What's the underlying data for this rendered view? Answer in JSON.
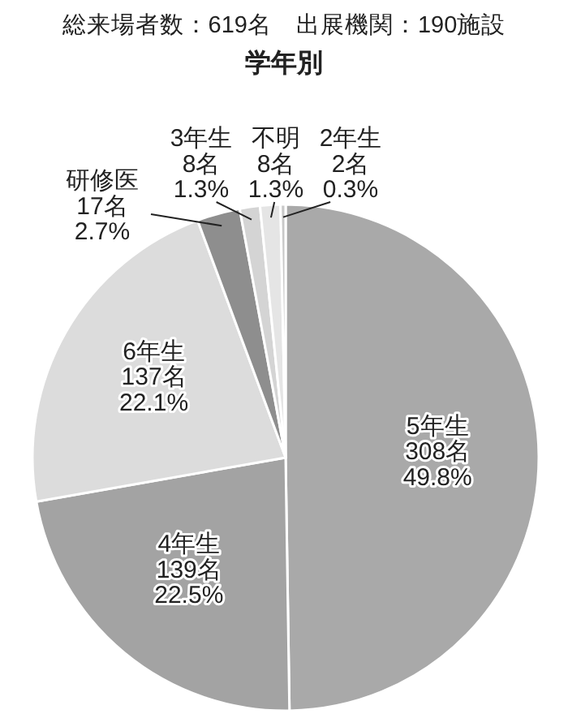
{
  "chart_data": {
    "type": "pie",
    "subtitle": "総来場者数：619名　出展機関：190施設",
    "title": "学年別",
    "categories": [
      "5年生",
      "4年生",
      "6年生",
      "研修医",
      "3年生",
      "不明",
      "2年生"
    ],
    "values": [
      308,
      139,
      137,
      17,
      8,
      8,
      2
    ],
    "value_labels": [
      "308名\n49.8%",
      "139名\n22.5%",
      "137名\n22.1%",
      "17名\n2.7%",
      "8名\n1.3%",
      "8名\n1.3%",
      "2名\n0.3%"
    ],
    "colors": [
      "#a9a9a9",
      "#a3a3a3",
      "#dcdcdc",
      "#8e8e8e",
      "#d4d4d4",
      "#e5e5e5",
      "#c8c8c8"
    ]
  }
}
